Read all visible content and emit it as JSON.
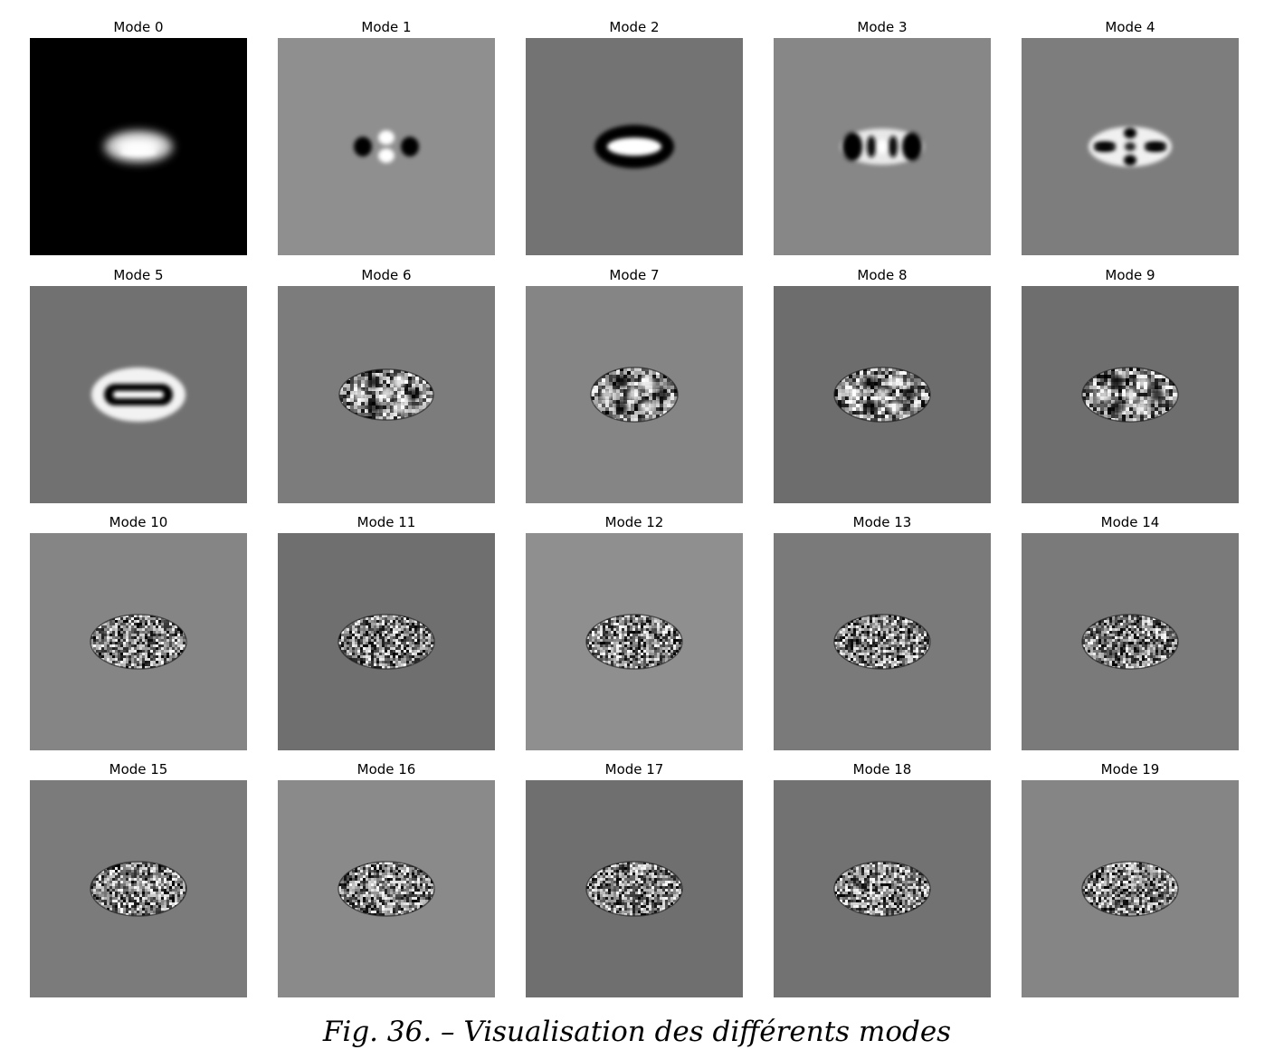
{
  "figure": {
    "caption": "Fig. 36. – Visualisation des différents modes",
    "panels": [
      {
        "title": "Mode 0",
        "background": "#000000",
        "pattern": "gaussian"
      },
      {
        "title": "Mode 1",
        "background": "#8f8f8f",
        "pattern": "dipole"
      },
      {
        "title": "Mode 2",
        "background": "#737373",
        "pattern": "ring"
      },
      {
        "title": "Mode 3",
        "background": "#878787",
        "pattern": "double-ring"
      },
      {
        "title": "Mode 4",
        "background": "#7d7d7d",
        "pattern": "clover"
      },
      {
        "title": "Mode 5",
        "background": "#717171",
        "pattern": "stadium"
      },
      {
        "title": "Mode 6",
        "background": "#7c7c7c",
        "pattern": "multi-ring"
      },
      {
        "title": "Mode 7",
        "background": "#858585",
        "pattern": "lattice"
      },
      {
        "title": "Mode 8",
        "background": "#6d6d6d",
        "pattern": "texture"
      },
      {
        "title": "Mode 9",
        "background": "#6e6e6e",
        "pattern": "texture"
      },
      {
        "title": "Mode 10",
        "background": "#858585",
        "pattern": "noise"
      },
      {
        "title": "Mode 11",
        "background": "#6f6f6f",
        "pattern": "noise"
      },
      {
        "title": "Mode 12",
        "background": "#8f8f8f",
        "pattern": "noise"
      },
      {
        "title": "Mode 13",
        "background": "#7a7a7a",
        "pattern": "noise"
      },
      {
        "title": "Mode 14",
        "background": "#7a7a7a",
        "pattern": "noise"
      },
      {
        "title": "Mode 15",
        "background": "#7b7b7b",
        "pattern": "noise"
      },
      {
        "title": "Mode 16",
        "background": "#8a8a8a",
        "pattern": "noise"
      },
      {
        "title": "Mode 17",
        "background": "#6f6f6f",
        "pattern": "noise"
      },
      {
        "title": "Mode 18",
        "background": "#727272",
        "pattern": "noise"
      },
      {
        "title": "Mode 19",
        "background": "#858585",
        "pattern": "noise"
      }
    ]
  }
}
